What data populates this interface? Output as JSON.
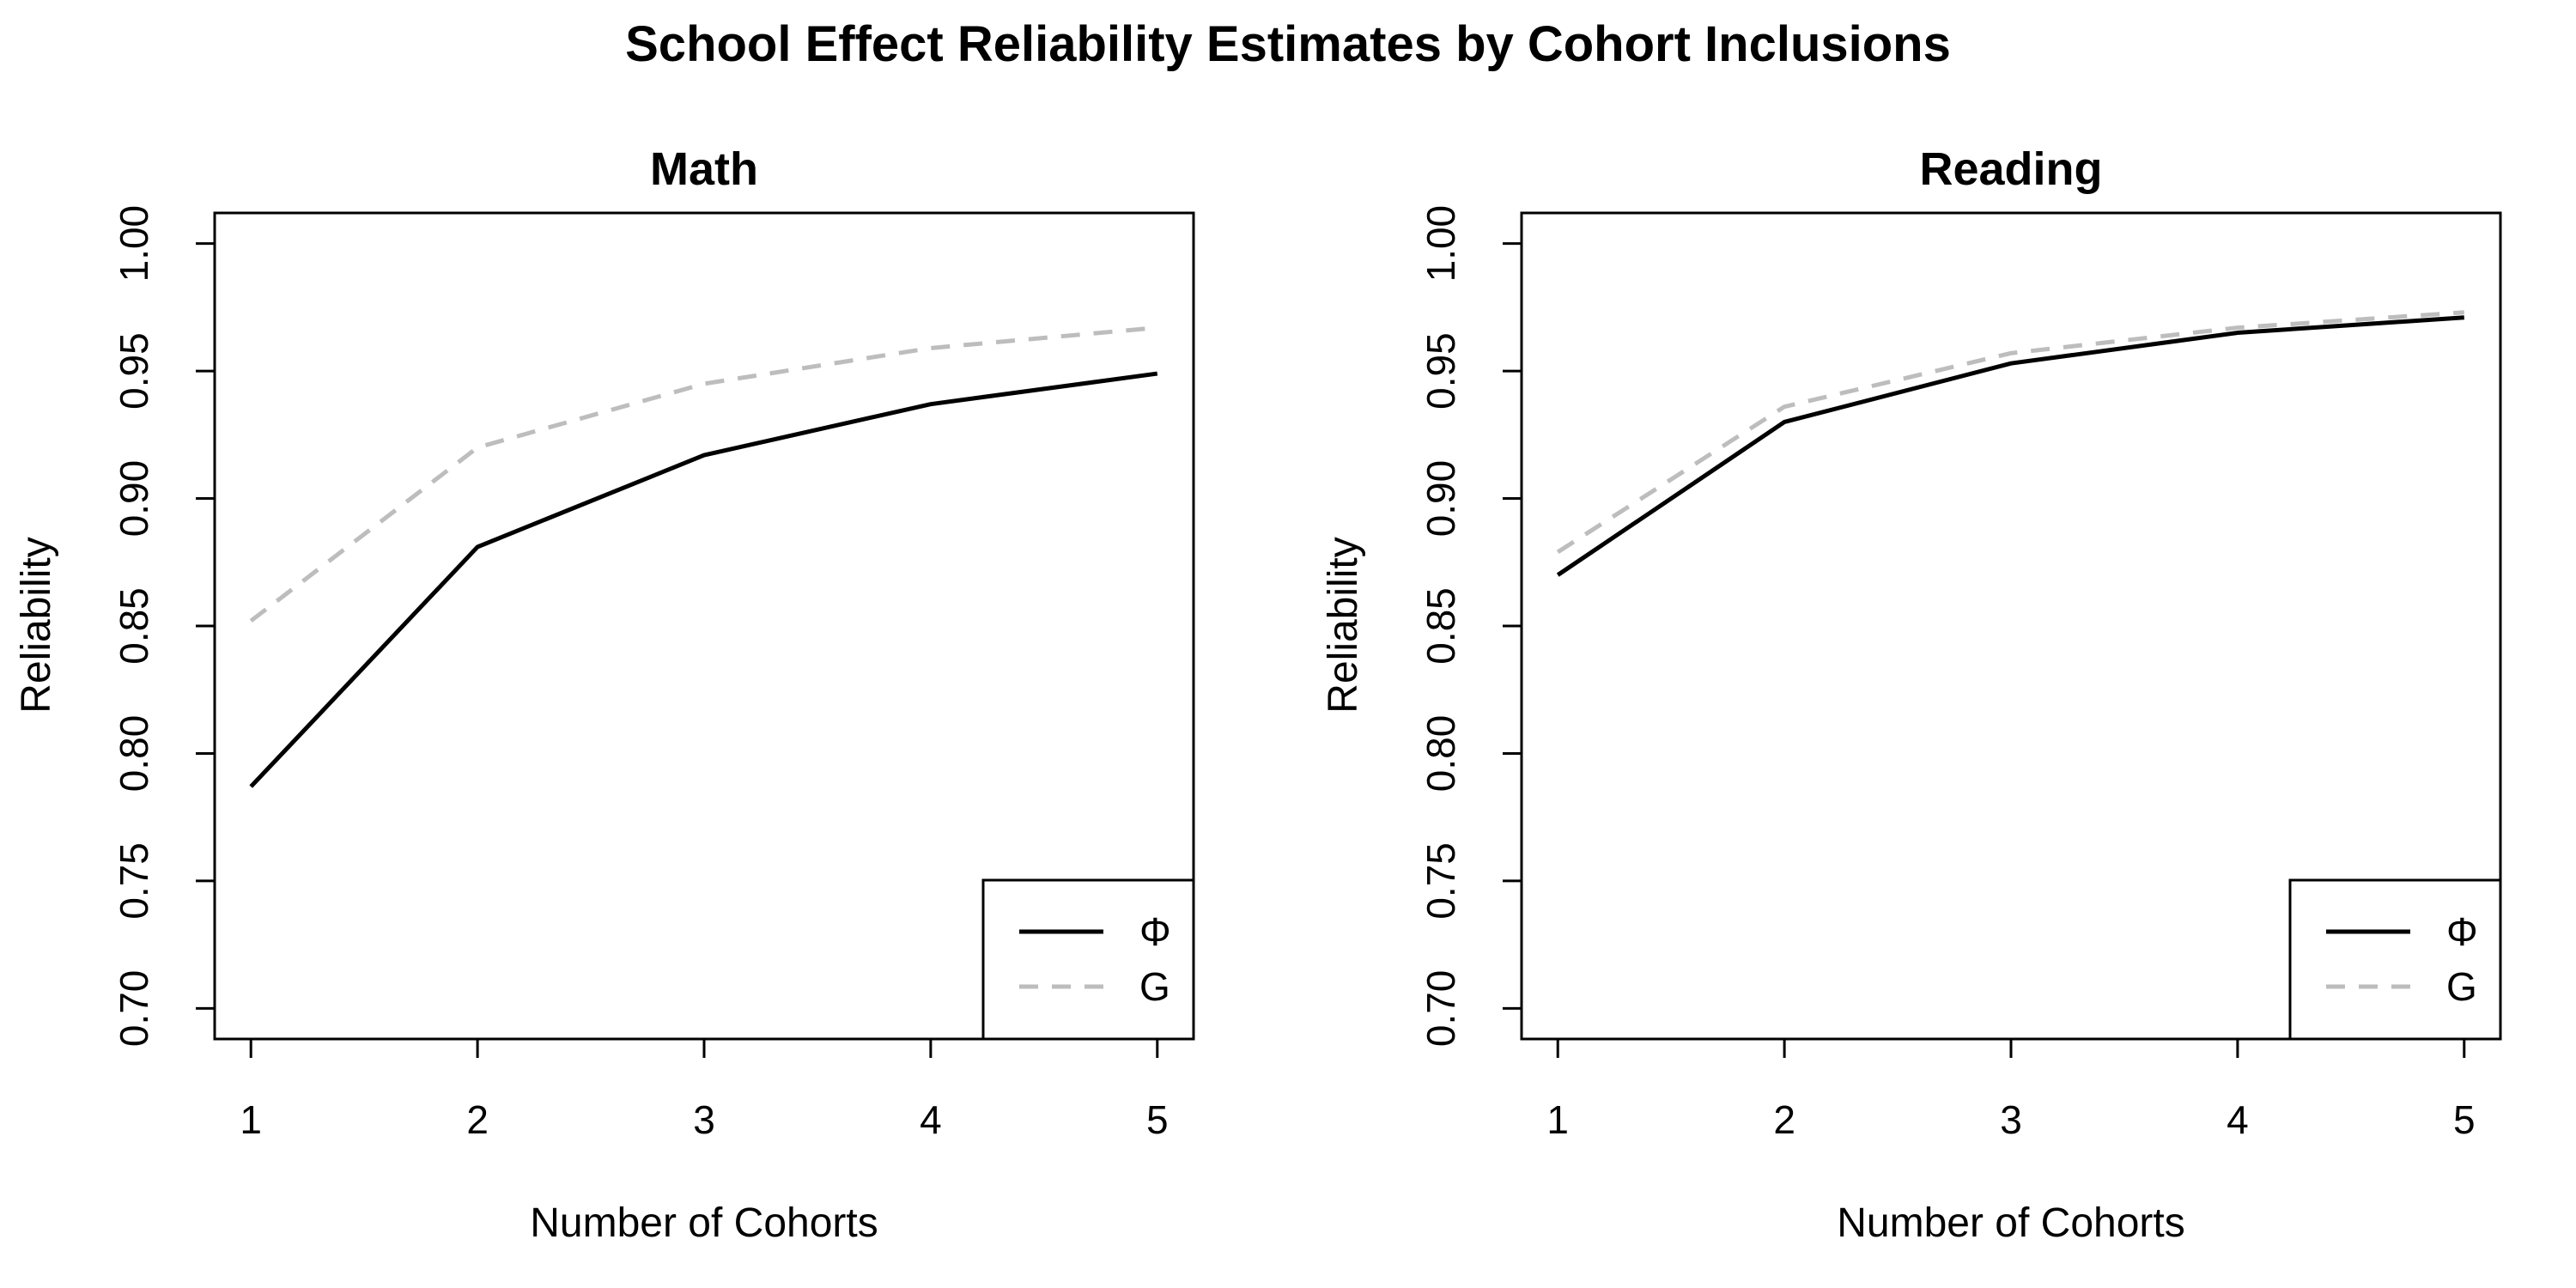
{
  "title": "School Effect Reliability Estimates by Cohort Inclusions",
  "colors": {
    "phi": "#000000",
    "g": "#bdbdbd"
  },
  "chart_data": [
    {
      "type": "line",
      "title": "Math",
      "xlabel": "Number of Cohorts",
      "ylabel": "Reliability",
      "x": [
        1,
        2,
        3,
        4,
        5
      ],
      "xticks": [
        "1",
        "2",
        "3",
        "4",
        "5"
      ],
      "yticks": [
        "0.70",
        "0.75",
        "0.80",
        "0.85",
        "0.90",
        "0.95",
        "1.00"
      ],
      "ylim": [
        0.688,
        1.012
      ],
      "grid": false,
      "legend_position": "bottom-right",
      "series": [
        {
          "name": "Φ",
          "style": "solid",
          "values": [
            0.787,
            0.881,
            0.917,
            0.937,
            0.949
          ]
        },
        {
          "name": "G",
          "style": "dashed",
          "values": [
            0.852,
            0.92,
            0.945,
            0.959,
            0.967
          ]
        }
      ]
    },
    {
      "type": "line",
      "title": "Reading",
      "xlabel": "Number of Cohorts",
      "ylabel": "Reliability",
      "x": [
        1,
        2,
        3,
        4,
        5
      ],
      "xticks": [
        "1",
        "2",
        "3",
        "4",
        "5"
      ],
      "yticks": [
        "0.70",
        "0.75",
        "0.80",
        "0.85",
        "0.90",
        "0.95",
        "1.00"
      ],
      "ylim": [
        0.688,
        1.012
      ],
      "grid": false,
      "legend_position": "bottom-right",
      "series": [
        {
          "name": "Φ",
          "style": "solid",
          "values": [
            0.87,
            0.93,
            0.953,
            0.965,
            0.971
          ]
        },
        {
          "name": "G",
          "style": "dashed",
          "values": [
            0.879,
            0.936,
            0.957,
            0.967,
            0.973
          ]
        }
      ]
    }
  ]
}
